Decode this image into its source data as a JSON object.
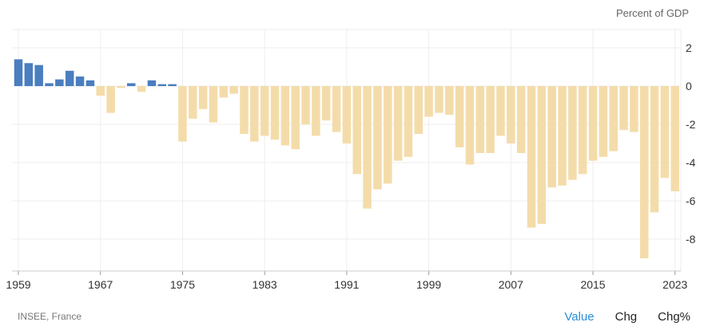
{
  "chart_data": {
    "type": "bar",
    "title": "",
    "ylabel": "Percent of GDP",
    "xlabel": "",
    "x_start": 1959,
    "x_end": 2023,
    "values": [
      1.4,
      1.2,
      1.1,
      0.15,
      0.35,
      0.8,
      0.5,
      0.3,
      -0.5,
      -1.4,
      -0.1,
      0.15,
      -0.3,
      0.3,
      0.1,
      0.1,
      -2.9,
      -1.7,
      -1.2,
      -1.9,
      -0.6,
      -0.4,
      -2.5,
      -2.9,
      -2.6,
      -2.8,
      -3.1,
      -3.3,
      -2.0,
      -2.6,
      -1.8,
      -2.4,
      -3.0,
      -4.6,
      -6.4,
      -5.4,
      -5.1,
      -3.9,
      -3.7,
      -2.5,
      -1.6,
      -1.4,
      -1.5,
      -3.2,
      -4.1,
      -3.5,
      -3.5,
      -2.6,
      -3.0,
      -3.5,
      -7.4,
      -7.2,
      -5.3,
      -5.2,
      -4.9,
      -4.6,
      -3.9,
      -3.7,
      -3.4,
      -2.3,
      -2.4,
      -9.0,
      -6.6,
      -4.8,
      -5.5
    ],
    "x_ticks": [
      "1959",
      "1967",
      "1975",
      "1983",
      "1991",
      "1999",
      "2007",
      "2015",
      "2023"
    ],
    "y_ticks": [
      "2",
      "0",
      "-2",
      "-4",
      "-6",
      "-8"
    ],
    "y_tick_values": [
      2,
      0,
      -2,
      -4,
      -6,
      -8
    ],
    "ylim": [
      -9.5,
      2.9
    ],
    "grid": true,
    "colors": {
      "positive": "#4a7ebf",
      "negative": "#f4dcaa"
    }
  },
  "unit_label": "Percent of GDP",
  "source": "INSEE, France",
  "tabs": [
    {
      "label": "Value"
    },
    {
      "label": "Chg"
    },
    {
      "label": "Chg%"
    }
  ]
}
